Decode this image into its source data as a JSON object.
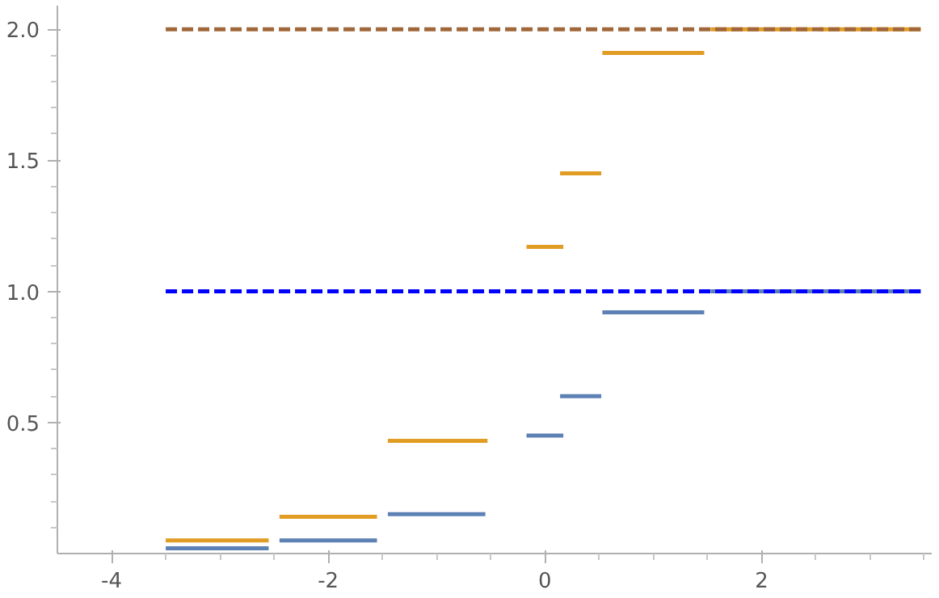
{
  "chart_data": {
    "type": "line",
    "xlim": [
      -4.5,
      3.57
    ],
    "ylim": [
      0,
      2.09
    ],
    "xticks": [
      {
        "value": -4.0,
        "label": "-4"
      },
      {
        "value": -2.0,
        "label": "-2"
      },
      {
        "value": 0.0,
        "label": "0"
      },
      {
        "value": 2.0,
        "label": "2"
      },
      {
        "value": -3.5,
        "label": null
      },
      {
        "value": -3.0,
        "label": null
      },
      {
        "value": -2.5,
        "label": null
      },
      {
        "value": -1.5,
        "label": null
      },
      {
        "value": -1.0,
        "label": null
      },
      {
        "value": -0.5,
        "label": null
      },
      {
        "value": 0.5,
        "label": null
      },
      {
        "value": 1.0,
        "label": null
      },
      {
        "value": 1.5,
        "label": null
      },
      {
        "value": 2.5,
        "label": null
      },
      {
        "value": 3.0,
        "label": null
      },
      {
        "value": 3.5,
        "label": null
      }
    ],
    "yticks": [
      {
        "value": 0.5,
        "label": "0.5"
      },
      {
        "value": 1.0,
        "label": "1.0"
      },
      {
        "value": 1.5,
        "label": "1.5"
      },
      {
        "value": 2.0,
        "label": "2.0"
      },
      {
        "value": 0.1,
        "label": null
      },
      {
        "value": 0.2,
        "label": null
      },
      {
        "value": 0.3,
        "label": null
      },
      {
        "value": 0.4,
        "label": null
      },
      {
        "value": 0.6,
        "label": null
      },
      {
        "value": 0.7,
        "label": null
      },
      {
        "value": 0.8,
        "label": null
      },
      {
        "value": 0.9,
        "label": null
      },
      {
        "value": 1.1,
        "label": null
      },
      {
        "value": 1.2,
        "label": null
      },
      {
        "value": 1.3,
        "label": null
      },
      {
        "value": 1.4,
        "label": null
      },
      {
        "value": 1.6,
        "label": null
      },
      {
        "value": 1.7,
        "label": null
      },
      {
        "value": 1.8,
        "label": null
      },
      {
        "value": 1.9,
        "label": null
      }
    ],
    "grid": false,
    "series": [
      {
        "color": "#5e81b5",
        "line_style": "solid",
        "x": [
          -3.5,
          -2.55,
          null,
          -2.45,
          -1.55,
          null,
          -1.45,
          -0.55,
          null,
          -0.17,
          0.17,
          null,
          0.14,
          0.52,
          null,
          0.53,
          1.47,
          null,
          1.53,
          2.47,
          null,
          2.53,
          3.47
        ],
        "values": [
          0.02,
          0.02,
          null,
          0.05,
          0.05,
          null,
          0.15,
          0.15,
          null,
          0.45,
          0.45,
          null,
          0.6,
          0.6,
          null,
          0.92,
          0.92,
          null,
          1.0,
          1.0,
          null,
          1.0,
          1.0
        ]
      },
      {
        "color": "#e19c24",
        "line_style": "solid",
        "x": [
          -3.5,
          -2.55,
          null,
          -2.45,
          -1.55,
          null,
          -1.45,
          -0.53,
          null,
          -0.17,
          0.17,
          null,
          0.14,
          0.52,
          null,
          0.53,
          1.47,
          null,
          1.53,
          2.47,
          null,
          2.53,
          3.47
        ],
        "values": [
          0.05,
          0.05,
          null,
          0.14,
          0.14,
          null,
          0.43,
          0.43,
          null,
          1.17,
          1.17,
          null,
          1.45,
          1.45,
          null,
          1.91,
          1.91,
          null,
          2.0,
          2.0,
          null,
          2.0,
          2.0
        ]
      },
      {
        "color": "#0000ff",
        "line_style": "dashed",
        "x": [
          -3.5,
          3.5
        ],
        "values": [
          1.0,
          1.0
        ]
      },
      {
        "color": "#a0683a",
        "line_style": "dashed",
        "x": [
          -3.5,
          3.5
        ],
        "values": [
          2.0,
          2.0
        ]
      }
    ]
  }
}
